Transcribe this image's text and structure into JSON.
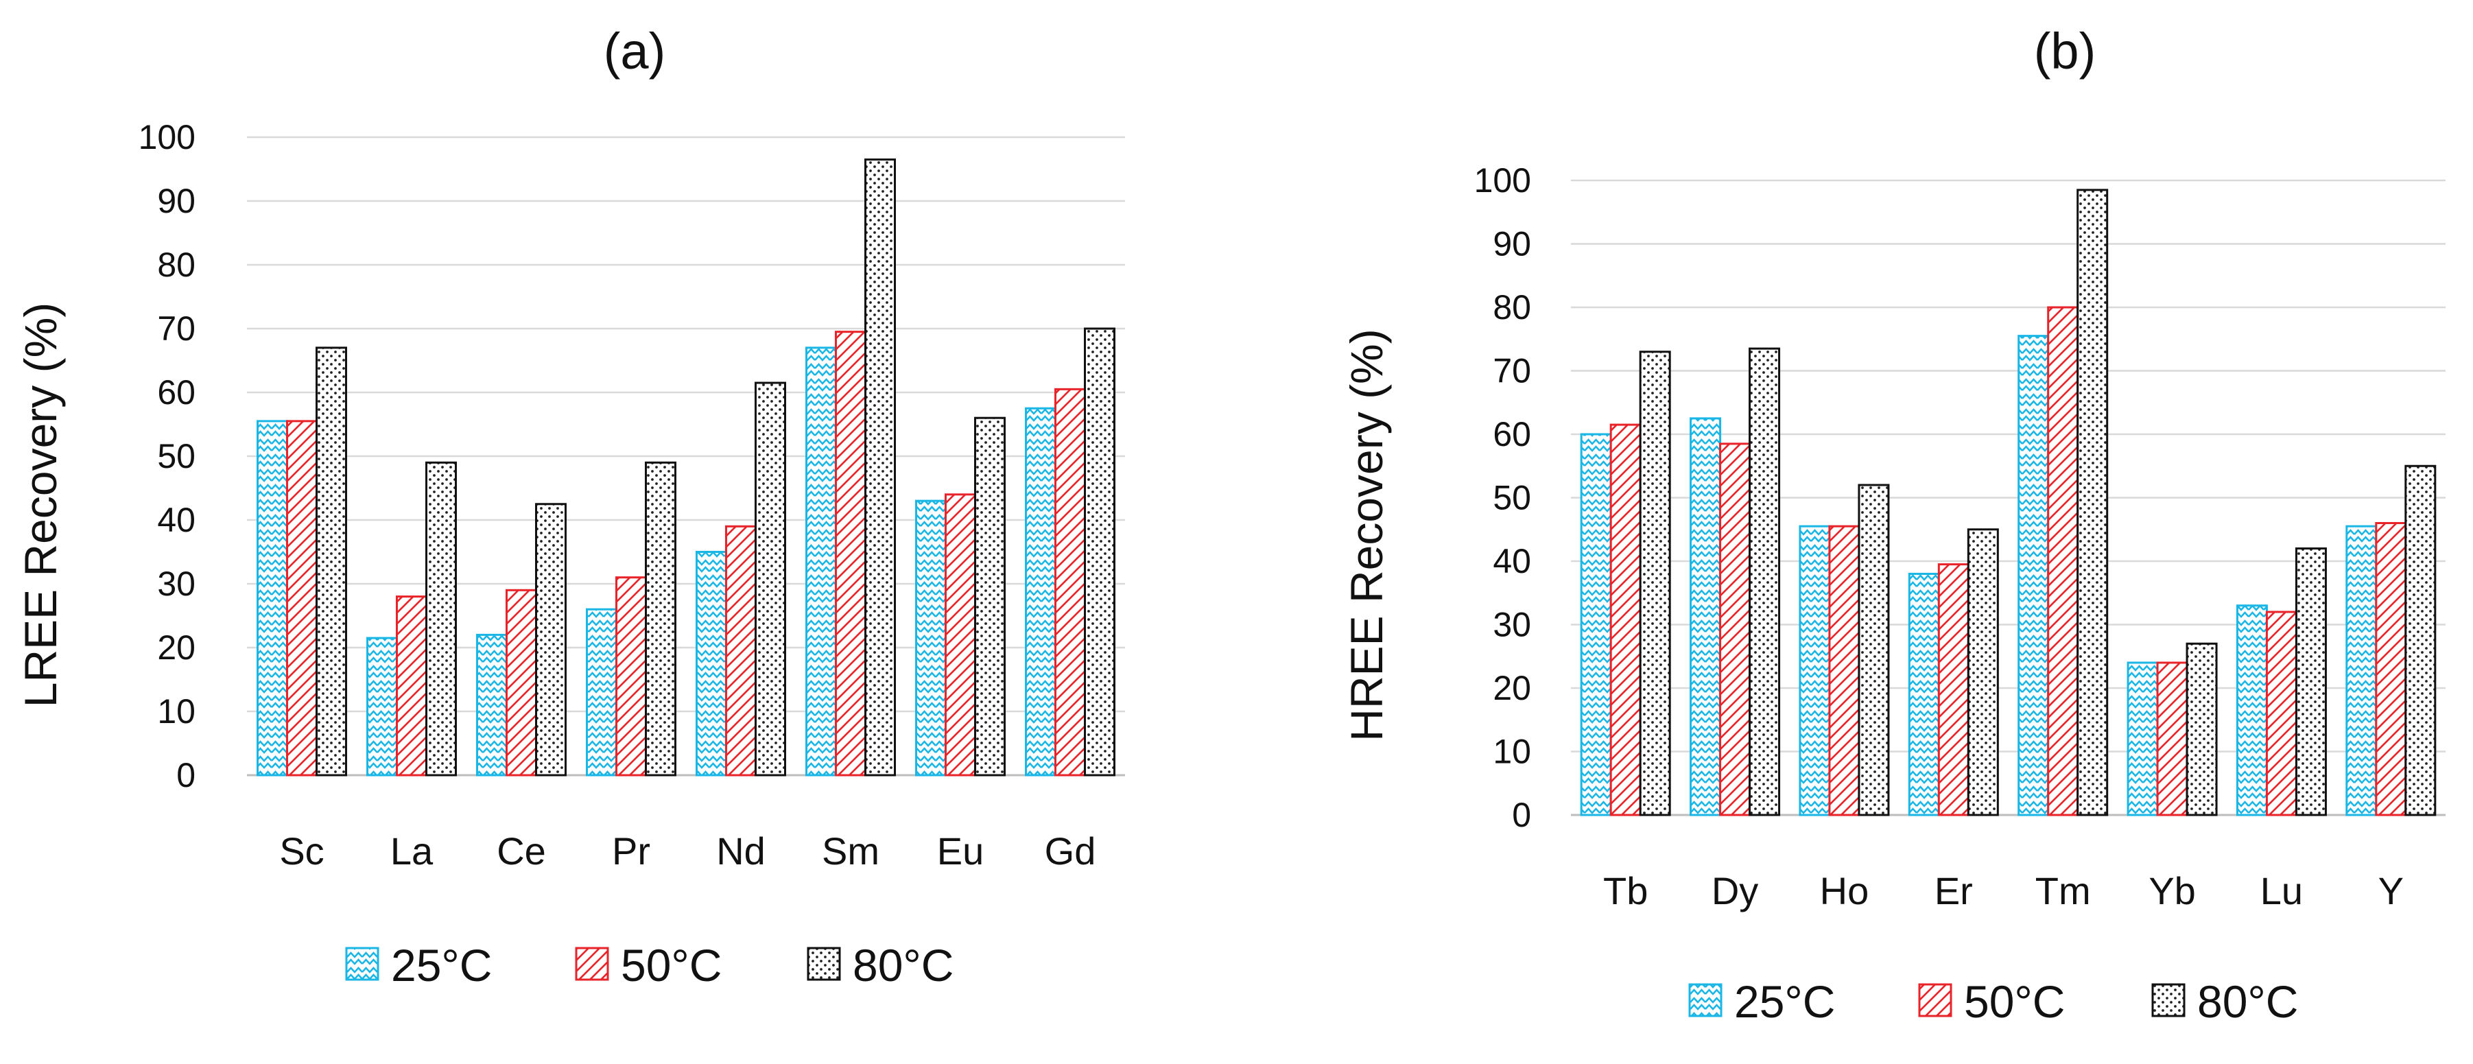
{
  "chart_data": [
    {
      "type": "bar",
      "title": "(a)",
      "xlabel": "",
      "ylabel": "LREE Recovery (%)",
      "ylim": [
        0,
        100
      ],
      "yticks": [
        0,
        10,
        20,
        30,
        40,
        50,
        60,
        70,
        80,
        90,
        100
      ],
      "grid": true,
      "legend_position": "bottom",
      "categories": [
        "Sc",
        "La",
        "Ce",
        "Pr",
        "Nd",
        "Sm",
        "Eu",
        "Gd"
      ],
      "series": [
        {
          "name": "25°C",
          "values": [
            55.5,
            21.5,
            22,
            26,
            35,
            67,
            43,
            57.5
          ]
        },
        {
          "name": "50°C",
          "values": [
            55.5,
            28,
            29,
            31,
            39,
            69.5,
            44,
            60.5
          ]
        },
        {
          "name": "80°C",
          "values": [
            67,
            49,
            42.5,
            49,
            61.5,
            96.5,
            56,
            70
          ]
        }
      ]
    },
    {
      "type": "bar",
      "title": "(b)",
      "xlabel": "",
      "ylabel": "HREE Recovery (%)",
      "ylim": [
        0,
        100
      ],
      "yticks": [
        0,
        10,
        20,
        30,
        40,
        50,
        60,
        70,
        80,
        90,
        100
      ],
      "grid": true,
      "legend_position": "bottom",
      "categories": [
        "Tb",
        "Dy",
        "Ho",
        "Er",
        "Tm",
        "Yb",
        "Lu",
        "Y"
      ],
      "series": [
        {
          "name": "25°C",
          "values": [
            60,
            62.5,
            45.5,
            38,
            75.5,
            24,
            33,
            45.5
          ]
        },
        {
          "name": "50°C",
          "values": [
            61.5,
            58.5,
            45.5,
            39.5,
            80,
            24,
            32,
            46
          ]
        },
        {
          "name": "80°C",
          "values": [
            73,
            73.5,
            52,
            45,
            98.5,
            27,
            42,
            55
          ]
        }
      ]
    }
  ],
  "series_styles": [
    {
      "stroke": "#19b6e6",
      "pattern": "zigzag"
    },
    {
      "stroke": "#e8232a",
      "pattern": "diagonal"
    },
    {
      "stroke": "#111111",
      "pattern": "dots"
    }
  ]
}
